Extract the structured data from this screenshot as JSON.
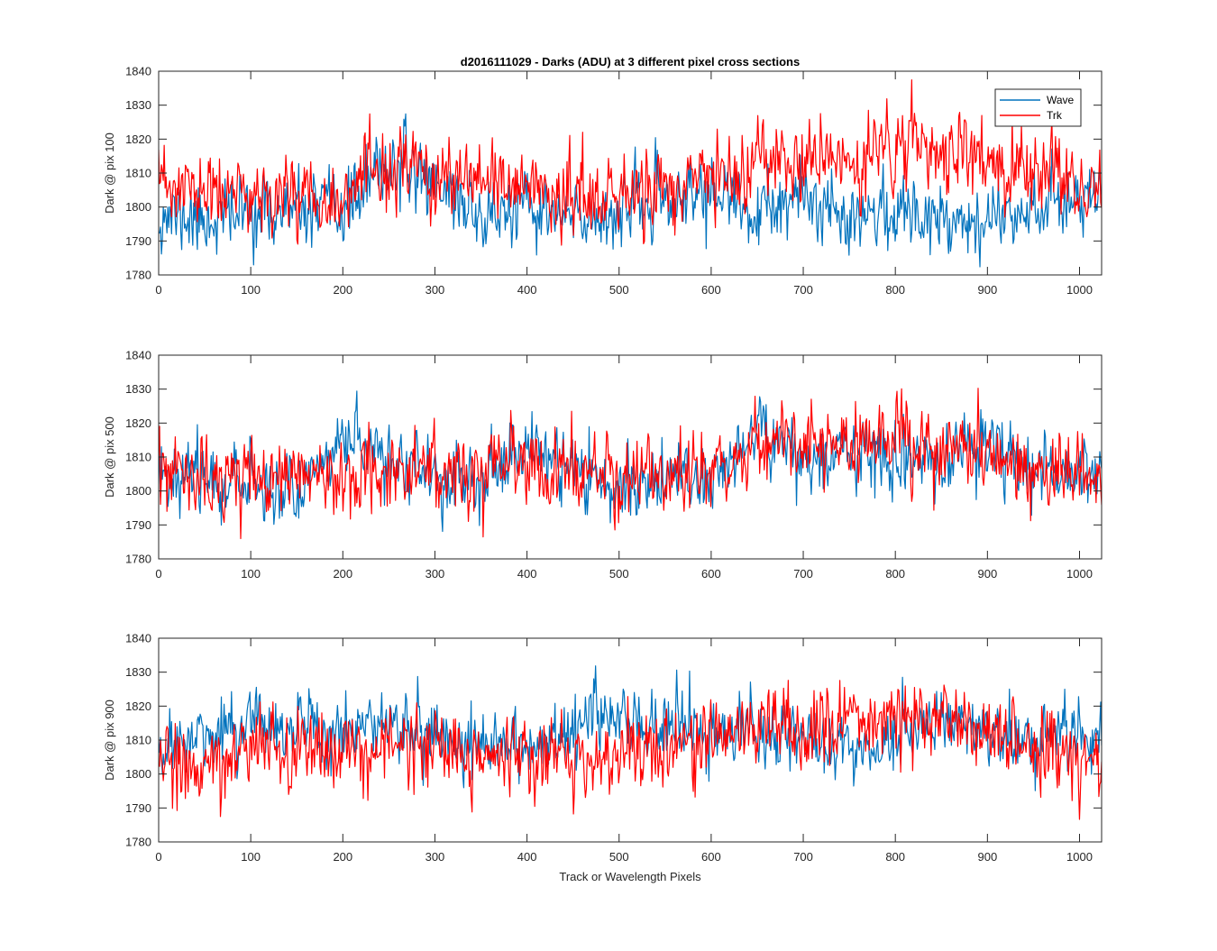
{
  "figure": {
    "title": "d2016111029 - Darks (ADU) at 3 different pixel cross sections",
    "xlabel": "Track or Wavelength Pixels"
  },
  "legend": {
    "placement": "top-right of first panel",
    "entries": [
      "Wave",
      "Trk"
    ]
  },
  "colors": {
    "wave": "#0072BD",
    "trk": "#FF0000",
    "axis": "#262626"
  },
  "chart_data": [
    {
      "type": "line",
      "ylabel": "Dark @ pix 100",
      "xlim": [
        0,
        1024
      ],
      "ylim": [
        1780,
        1840
      ],
      "xticks": [
        0,
        100,
        200,
        300,
        400,
        500,
        600,
        700,
        800,
        900,
        1000
      ],
      "yticks": [
        1780,
        1790,
        1800,
        1810,
        1820,
        1830,
        1840
      ],
      "grid": false,
      "series": [
        {
          "name": "Wave",
          "color": "#0072BD",
          "n_points": 1024,
          "seed": 11,
          "noise_sd": 5.0,
          "trend_x": [
            0,
            50,
            100,
            150,
            200,
            250,
            300,
            350,
            400,
            450,
            500,
            550,
            600,
            650,
            700,
            750,
            800,
            850,
            900,
            950,
            1000,
            1024
          ],
          "trend_y": [
            1798,
            1796,
            1799,
            1798,
            1799,
            1813,
            1808,
            1797,
            1799,
            1796,
            1799,
            1801,
            1805,
            1797,
            1802,
            1799,
            1798,
            1798,
            1796,
            1801,
            1803,
            1804
          ]
        },
        {
          "name": "Trk",
          "color": "#FF0000",
          "n_points": 1024,
          "seed": 23,
          "noise_sd": 5.5,
          "trend_x": [
            0,
            50,
            100,
            150,
            200,
            250,
            300,
            350,
            400,
            450,
            500,
            550,
            600,
            650,
            700,
            750,
            800,
            850,
            900,
            950,
            1000,
            1024
          ],
          "trend_y": [
            1806,
            1804,
            1803,
            1805,
            1803,
            1811,
            1809,
            1805,
            1807,
            1803,
            1802,
            1806,
            1808,
            1811,
            1814,
            1812,
            1818,
            1817,
            1813,
            1810,
            1806,
            1806
          ]
        }
      ]
    },
    {
      "type": "line",
      "ylabel": "Dark @ pix 500",
      "xlim": [
        0,
        1024
      ],
      "ylim": [
        1780,
        1840
      ],
      "xticks": [
        0,
        100,
        200,
        300,
        400,
        500,
        600,
        700,
        800,
        900,
        1000
      ],
      "yticks": [
        1780,
        1790,
        1800,
        1810,
        1820,
        1830,
        1840
      ],
      "grid": false,
      "series": [
        {
          "name": "Wave",
          "color": "#0072BD",
          "n_points": 1024,
          "seed": 37,
          "noise_sd": 5.0,
          "trend_x": [
            0,
            50,
            100,
            150,
            200,
            250,
            300,
            350,
            400,
            450,
            500,
            550,
            600,
            650,
            700,
            750,
            800,
            850,
            900,
            950,
            1000,
            1024
          ],
          "trend_y": [
            1806,
            1805,
            1802,
            1801,
            1815,
            1810,
            1805,
            1802,
            1813,
            1806,
            1802,
            1803,
            1804,
            1818,
            1809,
            1812,
            1810,
            1808,
            1813,
            1806,
            1806,
            1807
          ]
        },
        {
          "name": "Trk",
          "color": "#FF0000",
          "n_points": 1024,
          "seed": 53,
          "noise_sd": 5.5,
          "trend_x": [
            0,
            50,
            100,
            150,
            200,
            250,
            300,
            350,
            400,
            450,
            500,
            550,
            600,
            650,
            700,
            750,
            800,
            850,
            900,
            950,
            1000,
            1024
          ],
          "trend_y": [
            1805,
            1803,
            1803,
            1804,
            1806,
            1807,
            1806,
            1805,
            1807,
            1805,
            1803,
            1805,
            1807,
            1814,
            1812,
            1813,
            1815,
            1813,
            1811,
            1808,
            1806,
            1806
          ]
        }
      ]
    },
    {
      "type": "line",
      "ylabel": "Dark @ pix 900",
      "xlim": [
        0,
        1024
      ],
      "ylim": [
        1780,
        1840
      ],
      "xticks": [
        0,
        100,
        200,
        300,
        400,
        500,
        600,
        700,
        800,
        900,
        1000
      ],
      "yticks": [
        1780,
        1790,
        1800,
        1810,
        1820,
        1830,
        1840
      ],
      "grid": false,
      "series": [
        {
          "name": "Wave",
          "color": "#0072BD",
          "n_points": 1024,
          "seed": 71,
          "noise_sd": 5.0,
          "trend_x": [
            0,
            50,
            100,
            150,
            200,
            250,
            300,
            350,
            400,
            450,
            500,
            550,
            600,
            650,
            700,
            750,
            800,
            850,
            900,
            950,
            1000,
            1024
          ],
          "trend_y": [
            1808,
            1810,
            1816,
            1813,
            1813,
            1815,
            1813,
            1810,
            1808,
            1813,
            1817,
            1814,
            1812,
            1812,
            1810,
            1808,
            1810,
            1817,
            1813,
            1811,
            1810,
            1811
          ]
        },
        {
          "name": "Trk",
          "color": "#FF0000",
          "n_points": 1024,
          "seed": 89,
          "noise_sd": 5.5,
          "trend_x": [
            0,
            50,
            100,
            150,
            200,
            250,
            300,
            350,
            400,
            450,
            500,
            550,
            600,
            650,
            700,
            750,
            800,
            850,
            900,
            950,
            1000,
            1024
          ],
          "trend_y": [
            1802,
            1803,
            1806,
            1807,
            1807,
            1809,
            1808,
            1806,
            1806,
            1805,
            1805,
            1806,
            1812,
            1814,
            1814,
            1815,
            1815,
            1816,
            1812,
            1809,
            1805,
            1805
          ]
        }
      ]
    }
  ]
}
